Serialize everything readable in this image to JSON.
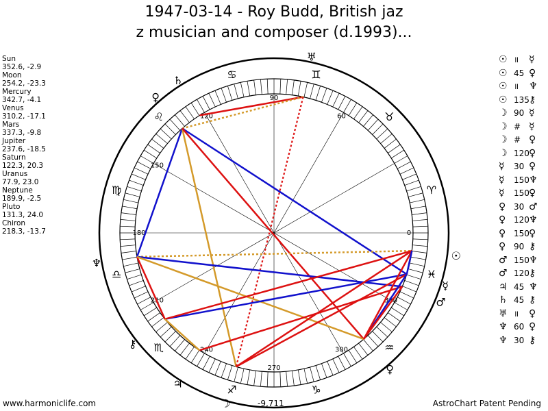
{
  "title_line1": "1947-03-14 - Roy Budd, British jaz",
  "title_line2": "z musician and composer (d.1993)...",
  "planets_list": [
    {
      "name": "Sun",
      "value": "352.6, -2.9"
    },
    {
      "name": "Moon",
      "value": "254.2, -23.3"
    },
    {
      "name": "Mercury",
      "value": "342.7, -4.1"
    },
    {
      "name": "Venus",
      "value": "310.2, -17.1"
    },
    {
      "name": "Mars",
      "value": "337.3, -9.8"
    },
    {
      "name": "Jupiter",
      "value": "237.6, -18.5"
    },
    {
      "name": "Saturn",
      "value": "122.3, 20.3"
    },
    {
      "name": "Uranus",
      "value": "77.9, 23.0"
    },
    {
      "name": "Neptune",
      "value": "189.9, -2.5"
    },
    {
      "name": "Pluto",
      "value": "131.3, 24.0"
    },
    {
      "name": "Chiron",
      "value": "218.3, -13.7"
    }
  ],
  "aspects": [
    {
      "p1": "☉",
      "aspect": "॥",
      "p2": "☿"
    },
    {
      "p1": "☉",
      "aspect": "45",
      "p2": "♀"
    },
    {
      "p1": "☉",
      "aspect": "॥",
      "p2": "♆"
    },
    {
      "p1": "☉",
      "aspect": "135",
      "p2": "⚷"
    },
    {
      "p1": "☽",
      "aspect": "90",
      "p2": "☿"
    },
    {
      "p1": "☽",
      "aspect": "#",
      "p2": "☿"
    },
    {
      "p1": "☽",
      "aspect": "#",
      "p2": "♀"
    },
    {
      "p1": "☽",
      "aspect": "120",
      "p2": "♀"
    },
    {
      "p1": "☿",
      "aspect": "30",
      "p2": "♀"
    },
    {
      "p1": "☿",
      "aspect": "150",
      "p2": "♆"
    },
    {
      "p1": "☿",
      "aspect": "150",
      "p2": "♀"
    },
    {
      "p1": "♀",
      "aspect": "30",
      "p2": "♂"
    },
    {
      "p1": "♀",
      "aspect": "120",
      "p2": "♆"
    },
    {
      "p1": "♀",
      "aspect": "150",
      "p2": "♀"
    },
    {
      "p1": "♀",
      "aspect": "90",
      "p2": "⚷"
    },
    {
      "p1": "♂",
      "aspect": "150",
      "p2": "♆"
    },
    {
      "p1": "♂",
      "aspect": "120",
      "p2": "⚷"
    },
    {
      "p1": "♃",
      "aspect": "45",
      "p2": "♆"
    },
    {
      "p1": "♄",
      "aspect": "45",
      "p2": "⚷"
    },
    {
      "p1": "♅",
      "aspect": "॥",
      "p2": "♀"
    },
    {
      "p1": "♆",
      "aspect": "60",
      "p2": "♀"
    },
    {
      "p1": "♆",
      "aspect": "30",
      "p2": "⚷"
    }
  ],
  "wheel_degree_labels": [
    "90",
    "60",
    "0",
    "330",
    "300",
    "270",
    "240",
    "210",
    "180",
    "150",
    "120"
  ],
  "bottom_value": "-9,711",
  "footer_left": "www.harmoniclife.com",
  "footer_right": "AstroChart Patent Pending",
  "signs": [
    "♈",
    "♉",
    "♊",
    "♋",
    "♌",
    "♍",
    "♎",
    "♏",
    "♐",
    "♑",
    "♒",
    "♓"
  ],
  "planet_glyphs": {
    "sun": "☉",
    "moon": "☽",
    "mercury": "☿",
    "venus": "♀",
    "mars": "♂",
    "jupiter": "♃",
    "saturn": "♄",
    "uranus": "♅",
    "neptune": "♆",
    "pluto": "♀",
    "chiron": "⚷"
  },
  "colors": {
    "red": "#dd1111",
    "blue": "#1111cc",
    "gold": "#d49a2a",
    "pink": "#ff69b4"
  }
}
